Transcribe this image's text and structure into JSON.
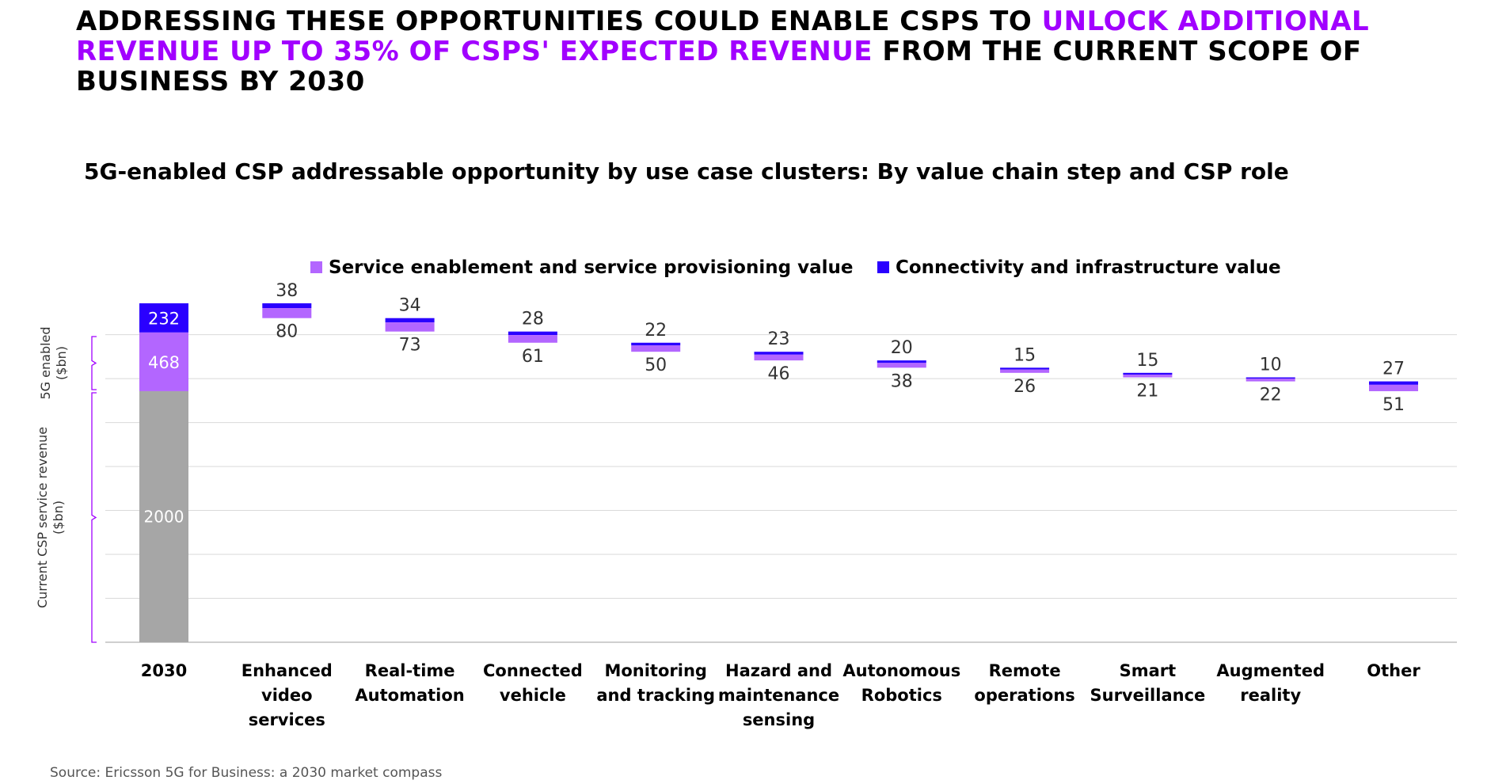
{
  "headline": {
    "part1": "ADDRESSING THESE OPPORTUNITIES COULD ENABLE CSPS TO ",
    "highlight": "UNLOCK ADDITIONAL REVENUE UP TO 35% OF CSPS' EXPECTED REVENUE",
    "part2": " FROM THE CURRENT SCOPE OF BUSINESS BY 2030"
  },
  "subtitle": "5G-enabled CSP addressable opportunity by use case clusters: By value chain step and CSP role",
  "source": "Source: Ericsson 5G for Business: a 2030 market compass",
  "colors": {
    "service": "#b366ff",
    "connectivity": "#2a00ff",
    "base": "#a6a6a6",
    "grid": "#d9d9d9",
    "bracket": "#a100ff"
  },
  "chart_data": {
    "type": "bar",
    "subtype": "waterfall",
    "categories": [
      "2030",
      "Enhanced video services",
      "Real-time Automation",
      "Connected vehicle",
      "Monitoring and tracking",
      "Hazard and maintenance sensing",
      "Autonomous Robotics",
      "Remote operations",
      "Smart Surveillance",
      "Augmented reality",
      "Other"
    ],
    "category_lines": [
      [
        "2030"
      ],
      [
        "Enhanced",
        "video",
        "services"
      ],
      [
        "Real-time",
        "Automation"
      ],
      [
        "Connected",
        "vehicle"
      ],
      [
        "Monitoring",
        "and tracking"
      ],
      [
        "Hazard and",
        "maintenance",
        "sensing"
      ],
      [
        "Autonomous",
        "Robotics"
      ],
      [
        "Remote",
        "operations"
      ],
      [
        "Smart",
        "Surveillance"
      ],
      [
        "Augmented",
        "reality"
      ],
      [
        "Other"
      ]
    ],
    "base": {
      "category": "2030",
      "value": 2000
    },
    "series": [
      {
        "name": "Service enablement and service provisioning value",
        "values": [
          468,
          80,
          73,
          61,
          50,
          46,
          38,
          26,
          21,
          22,
          51
        ]
      },
      {
        "name": "Connectivity and infrastructure value",
        "values": [
          232,
          38,
          34,
          28,
          22,
          23,
          20,
          15,
          15,
          10,
          27
        ]
      }
    ],
    "ylim": [
      0,
      2700
    ],
    "grid": true,
    "legend_position": "top",
    "left_brackets": [
      {
        "label_lines": [
          "5G enabled",
          "($bn)"
        ],
        "range": [
          2000,
          2700
        ]
      },
      {
        "label_lines": [
          "Current CSP service revenue",
          "($bn)"
        ],
        "range": [
          0,
          2000
        ]
      }
    ]
  }
}
